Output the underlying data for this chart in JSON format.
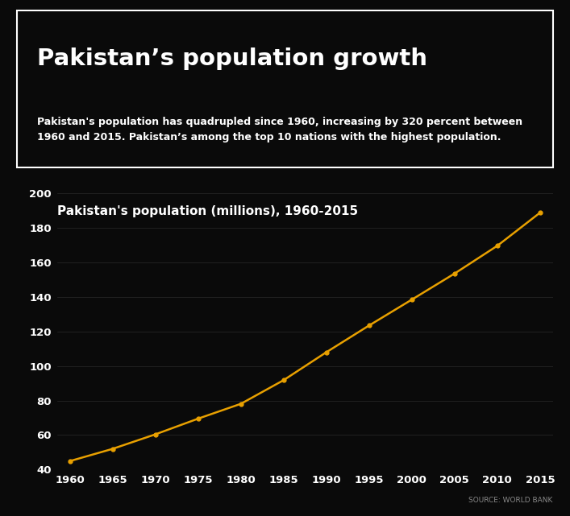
{
  "title": "Pakistan’s population growth",
  "subtitle": "Pakistan's population has quadrupled since 1960, increasing by 320 percent between\n1960 and 2015. Pakistan’s among the top 10 nations with the highest population.",
  "chart_title": "Pakistan's population (millions), 1960-2015",
  "source": "SOURCE: WORLD BANK",
  "header_bg": "#D4A420",
  "chart_bg": "#0a0a0a",
  "outer_bg": "#111111",
  "line_color": "#E8A000",
  "marker_color": "#E8A000",
  "title_color": "#FFFFFF",
  "subtitle_color": "#FFFFFF",
  "chart_title_color": "#FFFFFF",
  "tick_color": "#FFFFFF",
  "source_color": "#888888",
  "grid_color": "#2a2a2a",
  "border_color": "#FFFFFF",
  "years": [
    1960,
    1965,
    1970,
    1975,
    1980,
    1985,
    1990,
    1995,
    2000,
    2005,
    2010,
    2015
  ],
  "population": [
    44.9,
    52.0,
    60.4,
    69.5,
    78.1,
    91.8,
    108.0,
    123.5,
    138.5,
    153.6,
    169.7,
    188.9
  ],
  "ylim": [
    40,
    200
  ],
  "yticks": [
    40,
    60,
    80,
    100,
    120,
    140,
    160,
    180,
    200
  ],
  "xticks": [
    1960,
    1965,
    1970,
    1975,
    1980,
    1985,
    1990,
    1995,
    2000,
    2005,
    2010,
    2015
  ],
  "figsize": [
    7.07,
    6.41
  ],
  "dpi": 100
}
